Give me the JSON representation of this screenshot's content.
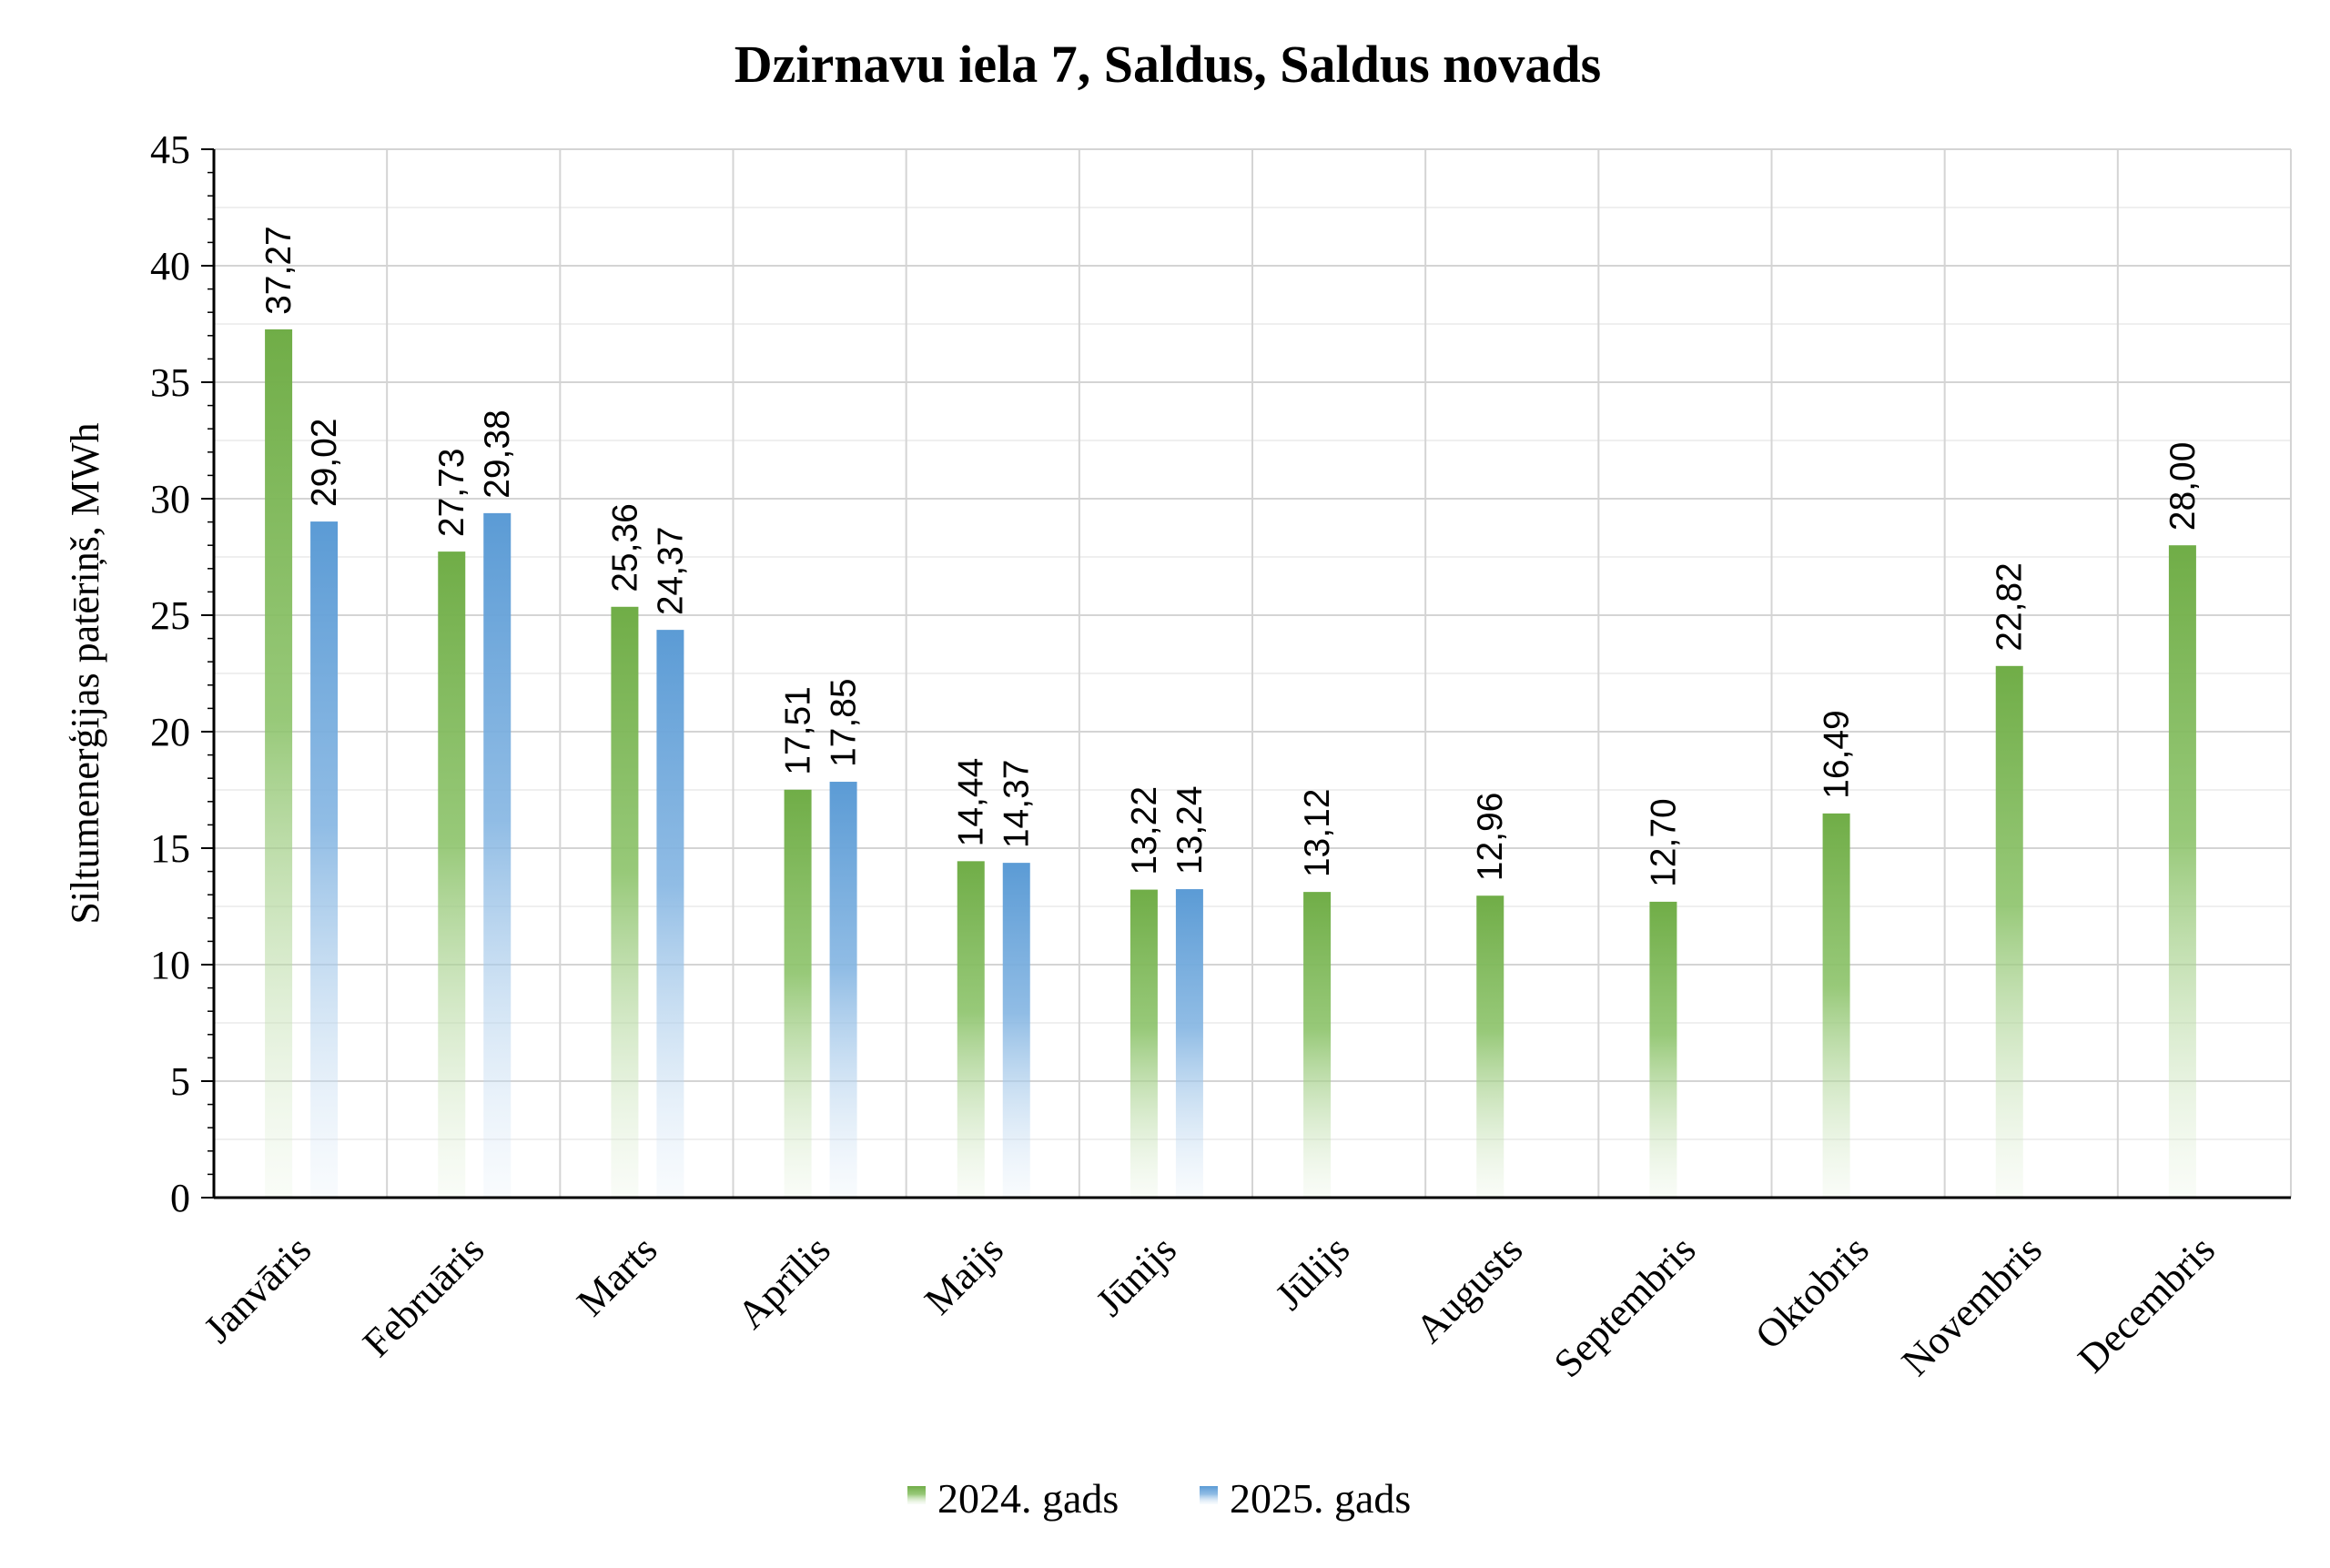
{
  "chart_data": {
    "type": "bar",
    "title": "Dzirnavu iela 7, Saldus, Saldus novads",
    "xlabel": "",
    "ylabel": "Siltumenerģijas patēriņš, MWh",
    "ylim": [
      0,
      45
    ],
    "yticks": [
      "0",
      "5",
      "10",
      "15",
      "20",
      "25",
      "30",
      "35",
      "40",
      "45"
    ],
    "grid": true,
    "legend_position": "bottom",
    "categories": [
      "Janvāris",
      "Februāris",
      "Marts",
      "Aprīlis",
      "Maijs",
      "Jūnijs",
      "Jūlijs",
      "Augusts",
      "Septembris",
      "Oktobris",
      "Novembris",
      "Decembris"
    ],
    "series": [
      {
        "name": "2024. gads",
        "color": "#70AD47",
        "values": [
          37.27,
          27.73,
          25.36,
          17.51,
          14.44,
          13.22,
          13.12,
          12.96,
          12.7,
          16.49,
          22.82,
          28.0
        ],
        "labels": [
          "37,27",
          "27,73",
          "25,36",
          "17,51",
          "14,44",
          "13,22",
          "13,12",
          "12,96",
          "12,70",
          "16,49",
          "22,82",
          "28,00"
        ]
      },
      {
        "name": "2025. gads",
        "color": "#5B9BD5",
        "values": [
          29.02,
          29.38,
          24.37,
          17.85,
          14.37,
          13.24,
          null,
          null,
          null,
          null,
          null,
          null
        ],
        "labels": [
          "29,02",
          "29,38",
          "24,37",
          "17,85",
          "14,37",
          "13,24",
          "",
          "",
          "",
          "",
          "",
          ""
        ]
      }
    ]
  }
}
